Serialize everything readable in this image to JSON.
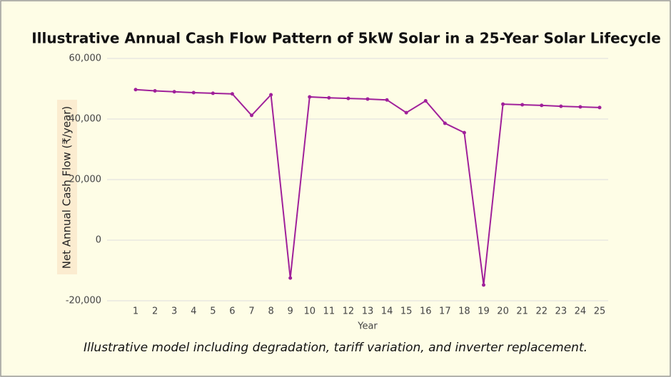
{
  "chart_data": {
    "type": "line",
    "title": "Illustrative Annual Cash Flow Pattern of 5kW Solar in a 25-Year Solar Lifecycle",
    "x_label": "Year",
    "y_label": "Net Annual Cash Flow (₹/year)",
    "note": "Illustrative model including degradation, tariff variation, and inverter replacement.",
    "categories": [
      "1",
      "2",
      "3",
      "4",
      "5",
      "6",
      "7",
      "8",
      "9",
      "10",
      "11",
      "12",
      "13",
      "14",
      "15",
      "16",
      "17",
      "18",
      "19",
      "20",
      "21",
      "22",
      "23",
      "24",
      "25"
    ],
    "series": [
      {
        "name": "Net Annual Cash Flow",
        "color": "#a0209a",
        "values": [
          49700,
          49300,
          49000,
          48700,
          48500,
          48300,
          41200,
          48000,
          -12500,
          47300,
          47000,
          46800,
          46600,
          46300,
          42100,
          46000,
          38600,
          35500,
          -14800,
          44900,
          44700,
          44500,
          44200,
          44000,
          43800
        ]
      }
    ],
    "ylim": [
      -20000,
      60000
    ],
    "yticks": [
      {
        "value": -20000,
        "label": "-20,000"
      },
      0,
      {
        "value": 20000,
        "label": "20,000"
      },
      {
        "value": 40000,
        "label": "40,000"
      },
      {
        "value": 60000,
        "label": "60,000"
      }
    ],
    "grid": true
  }
}
